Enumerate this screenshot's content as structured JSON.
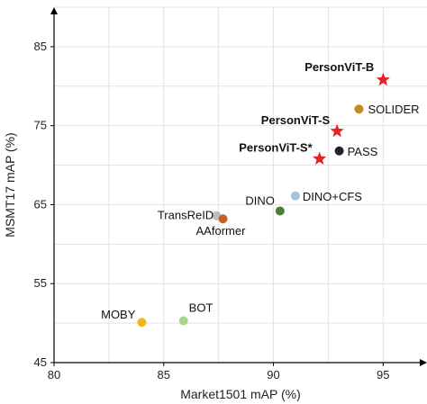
{
  "chart_data": {
    "type": "scatter",
    "xlabel": "Market1501 mAP (%)",
    "ylabel": "MSMT17 mAP (%)",
    "xlim": [
      80,
      97
    ],
    "ylim": [
      45,
      90
    ],
    "xticks": [
      "80",
      "85",
      "90",
      "95"
    ],
    "yticks": [
      "45",
      "55",
      "65",
      "75",
      "85"
    ],
    "grid": true,
    "points": [
      {
        "label": "PersonViT-B",
        "x": 95.0,
        "y": 80.8,
        "marker": "star",
        "color": "#e8202a",
        "bold": true
      },
      {
        "label": "SOLIDER",
        "x": 93.9,
        "y": 77.1,
        "marker": "circle",
        "color": "#c88a1c",
        "bold": false
      },
      {
        "label": "PersonViT-S",
        "x": 92.9,
        "y": 74.3,
        "marker": "star",
        "color": "#e8202a",
        "bold": true
      },
      {
        "label": "PASS",
        "x": 93.0,
        "y": 71.8,
        "marker": "circle",
        "color": "#1f2330",
        "bold": false
      },
      {
        "label": "PersonViT-S*",
        "x": 92.1,
        "y": 70.8,
        "marker": "star",
        "color": "#e8202a",
        "bold": true
      },
      {
        "label": "DINO+CFS",
        "x": 91.0,
        "y": 66.1,
        "marker": "circle",
        "color": "#a9bfe0",
        "bold": false
      },
      {
        "label": "DINO",
        "x": 90.3,
        "y": 64.2,
        "marker": "circle",
        "color": "#4a7f35",
        "bold": false
      },
      {
        "label": "TransReID",
        "x": 87.4,
        "y": 63.6,
        "marker": "circle",
        "color": "#bdbdbd",
        "bold": false
      },
      {
        "label": "AAformer",
        "x": 87.7,
        "y": 63.2,
        "marker": "circle",
        "color": "#c5622a",
        "bold": false
      },
      {
        "label": "BOT",
        "x": 85.9,
        "y": 50.3,
        "marker": "circle",
        "color": "#a3d98a",
        "bold": false
      },
      {
        "label": "MOBY",
        "x": 84.0,
        "y": 50.1,
        "marker": "circle",
        "color": "#f4b41a",
        "bold": false
      }
    ]
  }
}
